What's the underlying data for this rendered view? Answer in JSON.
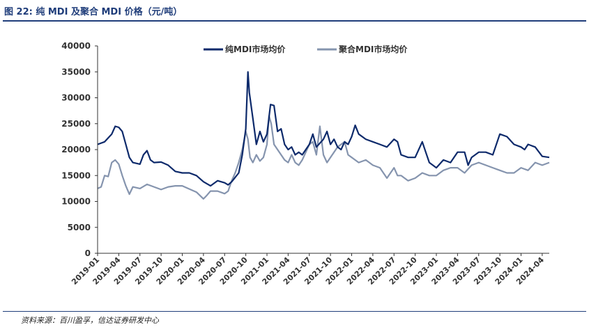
{
  "figure": {
    "title": "图 22:  纯 MDI 及聚合 MDI 价格（元/吨）",
    "source": "资料来源：百川盈孚，信达证券研发中心"
  },
  "colors": {
    "pure": "#0d2a6b",
    "polymeric": "#8594ae",
    "rule": "#1f3d7a"
  },
  "chart_data": {
    "type": "line",
    "title": "",
    "xlabel": "",
    "ylabel": "",
    "ylim": [
      0,
      40000
    ],
    "yticks": [
      "0",
      "5000",
      "10000",
      "15000",
      "20000",
      "25000",
      "30000",
      "35000",
      "40000"
    ],
    "x_range": [
      0,
      64
    ],
    "x_ticks": [
      "2019-01",
      "2019-04",
      "2019-07",
      "2019-10",
      "2020-01",
      "2020-04",
      "2020-07",
      "2020-10",
      "2021-01",
      "2021-04",
      "2021-07",
      "2021-10",
      "2022-01",
      "2022-04",
      "2022-07",
      "2022-10",
      "2023-01",
      "2023-04",
      "2023-07",
      "2023-10",
      "2024-01",
      "2024-04"
    ],
    "legend_position": "top",
    "series": [
      {
        "name": "纯MDI市场均价",
        "x": [
          0,
          1,
          2,
          2.5,
          3,
          3.5,
          4,
          4.5,
          5,
          6,
          6.5,
          7,
          7.5,
          8,
          9,
          10,
          11,
          12,
          13,
          14,
          15,
          16,
          17,
          18,
          18.5,
          19,
          20,
          20.5,
          21,
          21.3,
          21.5,
          22,
          22.5,
          23,
          23.5,
          24,
          24.5,
          25,
          25.5,
          26,
          26.5,
          27,
          27.5,
          28,
          28.5,
          29,
          30,
          30.5,
          31,
          32,
          32.5,
          33,
          33.5,
          34,
          34.5,
          35,
          35.5,
          36,
          36.5,
          37,
          38,
          39,
          40,
          41,
          42,
          42.5,
          43,
          44,
          45,
          46,
          46.5,
          47,
          48,
          49,
          50,
          51,
          52,
          52.5,
          53,
          54,
          55,
          56,
          57,
          58,
          59,
          60,
          60.5,
          61,
          62,
          63,
          64
        ],
        "values": [
          21000,
          21500,
          23000,
          24500,
          24300,
          23500,
          21000,
          18500,
          17500,
          17200,
          19000,
          19800,
          18000,
          17500,
          17600,
          17000,
          15800,
          15500,
          15500,
          15000,
          13800,
          13000,
          14000,
          13600,
          13200,
          13800,
          15500,
          19000,
          24000,
          35000,
          31000,
          26000,
          21000,
          23500,
          21500,
          23000,
          28700,
          28500,
          23500,
          24000,
          21000,
          20000,
          20500,
          19000,
          19500,
          19000,
          21000,
          23000,
          20500,
          22000,
          23500,
          21000,
          22000,
          20500,
          20000,
          21500,
          21000,
          22500,
          24700,
          23000,
          22000,
          21500,
          21000,
          20500,
          22000,
          21500,
          19000,
          18500,
          18500,
          21500,
          19500,
          17500,
          16500,
          18000,
          17500,
          19500,
          19500,
          17000,
          18500,
          19500,
          19500,
          19000,
          23000,
          22500,
          21000,
          20500,
          20000,
          21000,
          20500,
          18700,
          18500
        ]
      },
      {
        "name": "聚合MDI市场均价",
        "x": [
          0,
          0.5,
          1,
          1.5,
          2,
          2.5,
          3,
          3.5,
          4,
          4.5,
          5,
          6,
          7,
          8,
          9,
          10,
          11,
          12,
          13,
          14,
          15,
          15.5,
          16,
          17,
          18,
          18.5,
          19,
          19.5,
          20,
          20.5,
          21,
          21.3,
          21.6,
          22,
          22.5,
          23,
          23.5,
          24,
          24.3,
          24.6,
          25,
          25.5,
          26,
          26.5,
          27,
          27.5,
          28,
          28.5,
          29,
          30,
          30.5,
          31,
          31.5,
          32,
          32.5,
          33,
          34,
          35,
          35.5,
          36,
          37,
          38,
          39,
          40,
          41,
          42,
          42.5,
          43,
          44,
          45,
          46,
          47,
          48,
          49,
          50,
          51,
          52,
          53,
          54,
          55,
          56,
          57,
          58,
          59,
          60,
          61,
          62,
          63,
          64
        ],
        "values": [
          12500,
          12800,
          15000,
          14800,
          17500,
          18000,
          17200,
          15000,
          13000,
          11400,
          12800,
          12500,
          13300,
          12800,
          12300,
          12800,
          13000,
          13000,
          12400,
          11800,
          10500,
          11200,
          12000,
          12000,
          11500,
          12000,
          14000,
          15500,
          17500,
          20000,
          23500,
          22000,
          18500,
          17500,
          19000,
          17800,
          18500,
          21000,
          26500,
          25000,
          21000,
          20000,
          19000,
          18000,
          17500,
          19000,
          17500,
          17000,
          18000,
          21000,
          21500,
          19000,
          24500,
          19000,
          17500,
          18500,
          20500,
          21500,
          19000,
          18500,
          17500,
          18000,
          17000,
          16500,
          14500,
          16500,
          15000,
          15000,
          14000,
          14500,
          15500,
          15000,
          15000,
          16000,
          16500,
          16500,
          15500,
          17000,
          17500,
          17000,
          16500,
          16000,
          15500,
          15500,
          16500,
          16000,
          17500,
          17000,
          17500
        ]
      }
    ]
  }
}
